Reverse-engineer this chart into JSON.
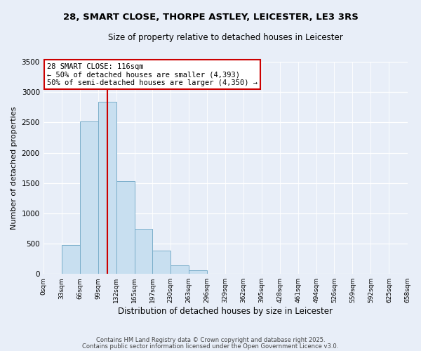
{
  "title": "28, SMART CLOSE, THORPE ASTLEY, LEICESTER, LE3 3RS",
  "subtitle": "Size of property relative to detached houses in Leicester",
  "xlabel": "Distribution of detached houses by size in Leicester",
  "ylabel": "Number of detached properties",
  "bin_edges": [
    0,
    33,
    66,
    99,
    132,
    165,
    197,
    230,
    263,
    296,
    329,
    362,
    395,
    428,
    461,
    494,
    526,
    559,
    592,
    625,
    658
  ],
  "bin_labels": [
    "0sqm",
    "33sqm",
    "66sqm",
    "99sqm",
    "132sqm",
    "165sqm",
    "197sqm",
    "230sqm",
    "263sqm",
    "296sqm",
    "329sqm",
    "362sqm",
    "395sqm",
    "428sqm",
    "461sqm",
    "494sqm",
    "526sqm",
    "559sqm",
    "592sqm",
    "625sqm",
    "658sqm"
  ],
  "bar_heights": [
    0,
    480,
    2520,
    2840,
    1530,
    740,
    390,
    145,
    60,
    0,
    0,
    0,
    0,
    0,
    0,
    0,
    0,
    0,
    0,
    0
  ],
  "bar_color": "#c8dff0",
  "bar_edge_color": "#7aaeca",
  "vline_x": 116,
  "vline_color": "#cc0000",
  "annotation_title": "28 SMART CLOSE: 116sqm",
  "annotation_line1": "← 50% of detached houses are smaller (4,393)",
  "annotation_line2": "50% of semi-detached houses are larger (4,350) →",
  "annotation_box_color": "#ffffff",
  "annotation_box_edge_color": "#cc0000",
  "ylim": [
    0,
    3500
  ],
  "background_color": "#e8eef8",
  "footer1": "Contains HM Land Registry data © Crown copyright and database right 2025.",
  "footer2": "Contains public sector information licensed under the Open Government Licence v3.0."
}
